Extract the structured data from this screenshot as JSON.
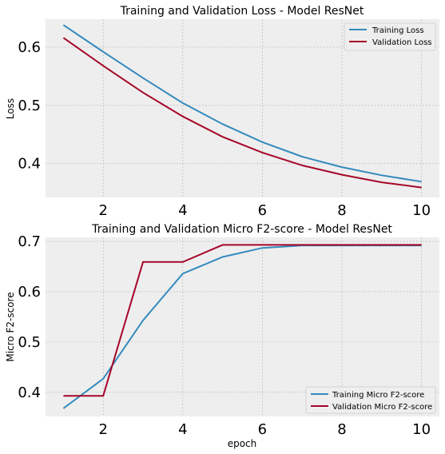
{
  "chart_data": [
    {
      "type": "line",
      "title": "Training and Validation Loss - Model ResNet",
      "xlabel": "",
      "ylabel": "Loss",
      "x": [
        1,
        2,
        3,
        4,
        5,
        6,
        7,
        8,
        9,
        10
      ],
      "xlim": [
        0.55,
        10.45
      ],
      "ylim": [
        0.342,
        0.648
      ],
      "xticks": [
        2,
        4,
        6,
        8,
        10
      ],
      "xtick_labels": [
        "2",
        "4",
        "6",
        "8",
        "10"
      ],
      "yticks": [
        0.4,
        0.5,
        0.6
      ],
      "ytick_labels": [
        "0.4",
        "0.5",
        "0.6"
      ],
      "grid": true,
      "legend": "top-right",
      "series": [
        {
          "name": "Training Loss",
          "color": "#348abd",
          "values": [
            0.638,
            0.592,
            0.547,
            0.504,
            0.468,
            0.437,
            0.412,
            0.394,
            0.38,
            0.369
          ]
        },
        {
          "name": "Validation Loss",
          "color": "#a60628",
          "values": [
            0.616,
            0.568,
            0.522,
            0.481,
            0.446,
            0.419,
            0.397,
            0.381,
            0.368,
            0.359
          ]
        }
      ]
    },
    {
      "type": "line",
      "title": "Training and Validation Micro F2-score - Model ResNet",
      "xlabel": "epoch",
      "ylabel": "Micro F2-score",
      "x": [
        1,
        2,
        3,
        4,
        5,
        6,
        7,
        8,
        9,
        10
      ],
      "xlim": [
        0.55,
        10.45
      ],
      "ylim": [
        0.352,
        0.708
      ],
      "xticks": [
        2,
        4,
        6,
        8,
        10
      ],
      "xtick_labels": [
        "2",
        "4",
        "6",
        "8",
        "10"
      ],
      "yticks": [
        0.4,
        0.5,
        0.6,
        0.7
      ],
      "ytick_labels": [
        "0.4",
        "0.5",
        "0.6",
        "0.7"
      ],
      "grid": true,
      "legend": "bottom-right",
      "series": [
        {
          "name": "Training Micro F2-score",
          "color": "#348abd",
          "values": [
            0.368,
            0.427,
            0.543,
            0.636,
            0.669,
            0.687,
            0.692,
            0.692,
            0.692,
            0.692
          ]
        },
        {
          "name": "Validation Micro F2-score",
          "color": "#a60628",
          "values": [
            0.393,
            0.393,
            0.659,
            0.659,
            0.693,
            0.693,
            0.693,
            0.693,
            0.693,
            0.693
          ]
        }
      ]
    }
  ]
}
